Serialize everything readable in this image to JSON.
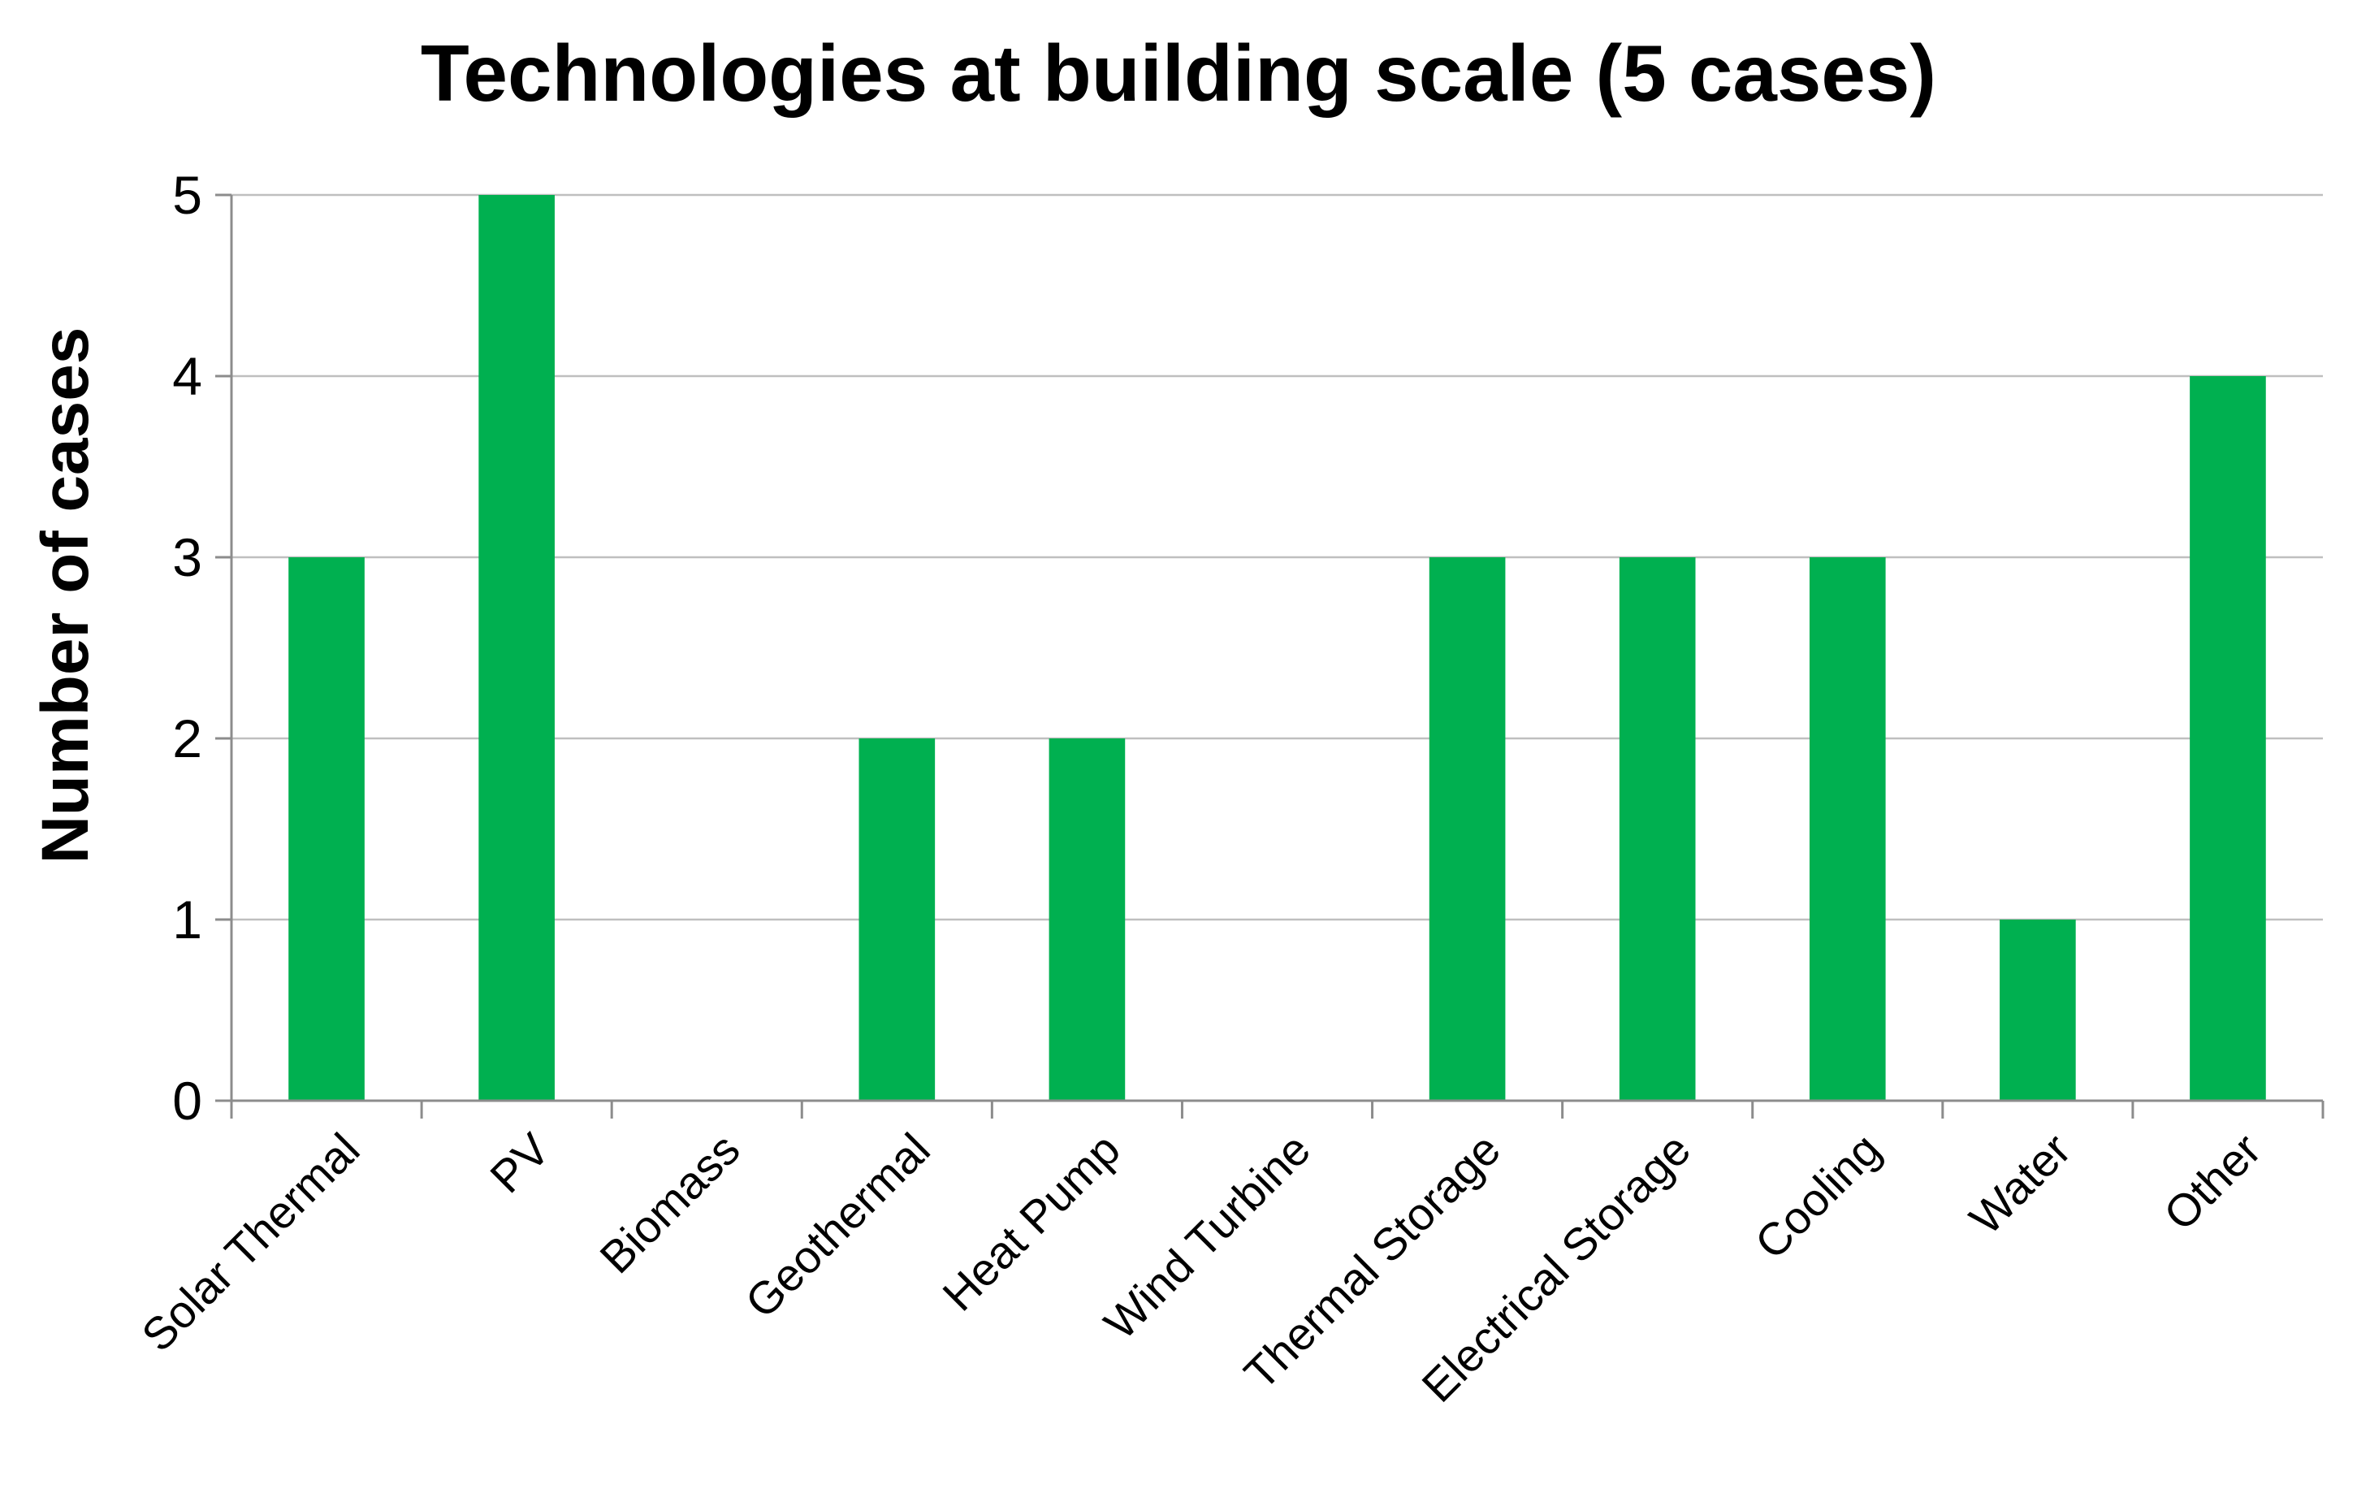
{
  "chart_data": {
    "type": "bar",
    "title": "Technologies at building scale (5 cases)",
    "xlabel": "",
    "ylabel": "Number of cases",
    "categories": [
      "Solar Thermal",
      "PV",
      "Biomass",
      "Geothermal",
      "Heat Pump",
      "Wind Turbine",
      "Thermal Storage",
      "Electrical Storage",
      "Cooling",
      "Water",
      "Other"
    ],
    "values": [
      3,
      5,
      0,
      2,
      2,
      0,
      3,
      3,
      3,
      1,
      4
    ],
    "ylim": [
      0,
      5
    ],
    "yticks": [
      0,
      1,
      2,
      3,
      4,
      5
    ],
    "grid": true,
    "legend": "none",
    "bar_color": "#00b050"
  }
}
